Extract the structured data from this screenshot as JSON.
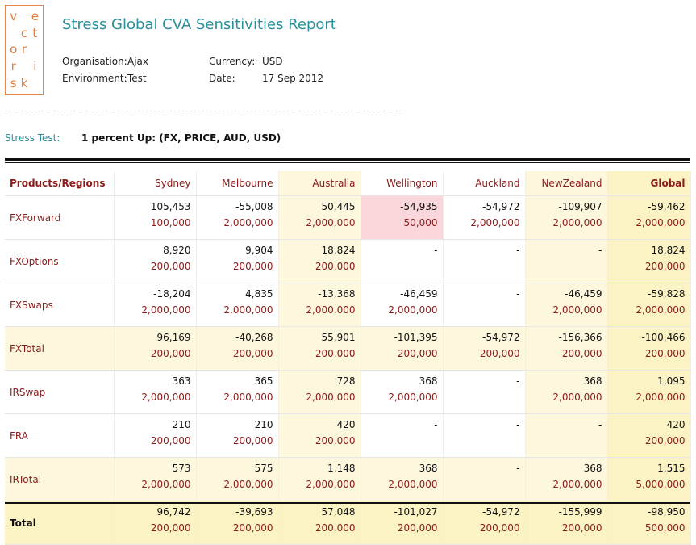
{
  "logo": {
    "letters": [
      [
        "v",
        "",
        "e"
      ],
      [
        "",
        "c",
        "t"
      ],
      [
        "o",
        "r",
        ""
      ],
      [
        "r",
        "",
        "i"
      ],
      [
        "s",
        "k",
        ""
      ]
    ]
  },
  "title": "Stress Global CVA Sensitivities Report",
  "meta": {
    "organisation_label": "Organisation:",
    "organisation_value": "Ajax",
    "environment_label": "Environment:",
    "environment_value": "Test",
    "currency_label": "Currency:",
    "currency_value": "USD",
    "date_label": "Date:",
    "date_value": "17 Sep 2012"
  },
  "stress": {
    "label": "Stress Test:",
    "value": "1 percent Up: (FX, PRICE, AUD, USD)"
  },
  "table": {
    "header": [
      "Products/Regions",
      "Sydney",
      "Melbourne",
      "Australia",
      "Wellington",
      "Auckland",
      "NewZealand",
      "Global"
    ],
    "rows": [
      {
        "name": "FXForward",
        "cells": [
          [
            "105,453",
            "100,000"
          ],
          [
            "-55,008",
            "2,000,000"
          ],
          [
            "50,445",
            "2,000,000"
          ],
          [
            "-54,935",
            "50,000"
          ],
          [
            "-54,972",
            "2,000,000"
          ],
          [
            "-109,907",
            "2,000,000"
          ],
          [
            "-59,462",
            "2,000,000"
          ]
        ]
      },
      {
        "name": "FXOptions",
        "cells": [
          [
            "8,920",
            "200,000"
          ],
          [
            "9,904",
            "200,000"
          ],
          [
            "18,824",
            "200,000"
          ],
          [
            "-",
            ""
          ],
          [
            "-",
            ""
          ],
          [
            "-",
            ""
          ],
          [
            "18,824",
            "200,000"
          ]
        ]
      },
      {
        "name": "FXSwaps",
        "cells": [
          [
            "-18,204",
            "2,000,000"
          ],
          [
            "4,835",
            "2,000,000"
          ],
          [
            "-13,368",
            "2,000,000"
          ],
          [
            "-46,459",
            "2,000,000"
          ],
          [
            "-",
            ""
          ],
          [
            "-46,459",
            "2,000,000"
          ],
          [
            "-59,828",
            "2,000,000"
          ]
        ]
      },
      {
        "name": "FXTotal",
        "cells": [
          [
            "96,169",
            "200,000"
          ],
          [
            "-40,268",
            "200,000"
          ],
          [
            "55,901",
            "200,000"
          ],
          [
            "-101,395",
            "200,000"
          ],
          [
            "-54,972",
            "200,000"
          ],
          [
            "-156,366",
            "200,000"
          ],
          [
            "-100,466",
            "200,000"
          ]
        ]
      },
      {
        "name": "IRSwap",
        "cells": [
          [
            "363",
            "2,000,000"
          ],
          [
            "365",
            "2,000,000"
          ],
          [
            "728",
            "2,000,000"
          ],
          [
            "368",
            "2,000,000"
          ],
          [
            "-",
            ""
          ],
          [
            "368",
            "2,000,000"
          ],
          [
            "1,095",
            "2,000,000"
          ]
        ]
      },
      {
        "name": "FRA",
        "cells": [
          [
            "210",
            "200,000"
          ],
          [
            "210",
            "200,000"
          ],
          [
            "420",
            "200,000"
          ],
          [
            "-",
            ""
          ],
          [
            "-",
            ""
          ],
          [
            "-",
            ""
          ],
          [
            "420",
            "200,000"
          ]
        ]
      },
      {
        "name": "IRTotal",
        "cells": [
          [
            "573",
            "2,000,000"
          ],
          [
            "575",
            "2,000,000"
          ],
          [
            "1,148",
            "2,000,000"
          ],
          [
            "368",
            "2,000,000"
          ],
          [
            "-",
            ""
          ],
          [
            "368",
            "2,000,000"
          ],
          [
            "1,515",
            "5,000,000"
          ]
        ]
      },
      {
        "name": "Total",
        "cells": [
          [
            "96,742",
            "200,000"
          ],
          [
            "-39,693",
            "200,000"
          ],
          [
            "57,048",
            "200,000"
          ],
          [
            "-101,027",
            "200,000"
          ],
          [
            "-54,972",
            "200,000"
          ],
          [
            "-155,999",
            "200,000"
          ],
          [
            "-98,950",
            "500,000"
          ]
        ]
      }
    ]
  },
  "colors": {
    "accent": "#2a8f9a",
    "logo": "#e07a3e",
    "region_subtotal_bg": "#fdf7de",
    "global_bg": "#fcf3c4",
    "highlight_bg": "#fbd7dc",
    "label_red": "#8b1a1a"
  }
}
